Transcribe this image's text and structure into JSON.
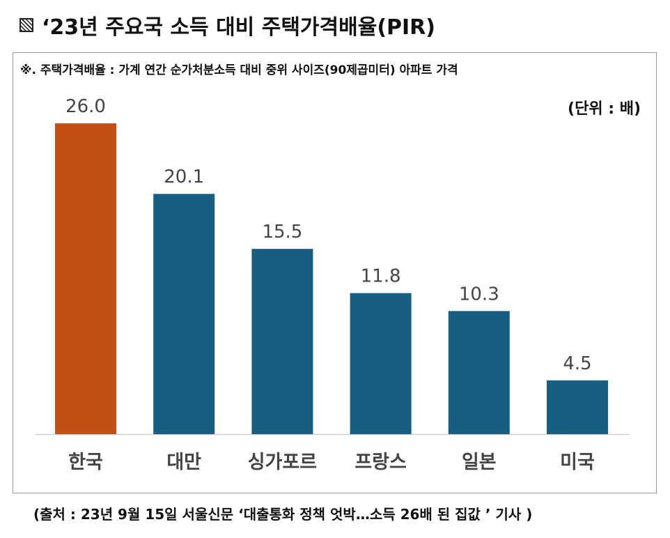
{
  "title": "‘23년 주요국 소득 대비 주택가격배율(PIR)",
  "note": "※. 주택가격배율 : 가계 연간 순가처분소득 대비 중위 사이즈(90제곱미터) 아파트 가격",
  "unit_label": "(단위 : 배)",
  "source": "(출처 : 23년 9월 15일 서울신문 ‘대출통화 정책 엇박…소득 26배 된 집값 ’ 기사 )",
  "colors": {
    "highlight": "#C05016",
    "bar": "#175E80",
    "axis": "#cfcfcf",
    "label": "#444444"
  },
  "chart_data": {
    "type": "bar",
    "title": "‘23년 주요국 소득 대비 주택가격배율(PIR)",
    "xlabel": "",
    "ylabel": "",
    "unit": "배",
    "categories": [
      "한국",
      "대만",
      "싱가포르",
      "프랑스",
      "일본",
      "미국"
    ],
    "values": [
      26.0,
      20.1,
      15.5,
      11.8,
      10.3,
      4.5
    ],
    "value_labels": [
      "26.0",
      "20.1",
      "15.5",
      "11.8",
      "10.3",
      "4.5"
    ],
    "highlight_index": 0,
    "ylim": [
      0,
      26
    ],
    "grid": false,
    "legend": "none"
  }
}
